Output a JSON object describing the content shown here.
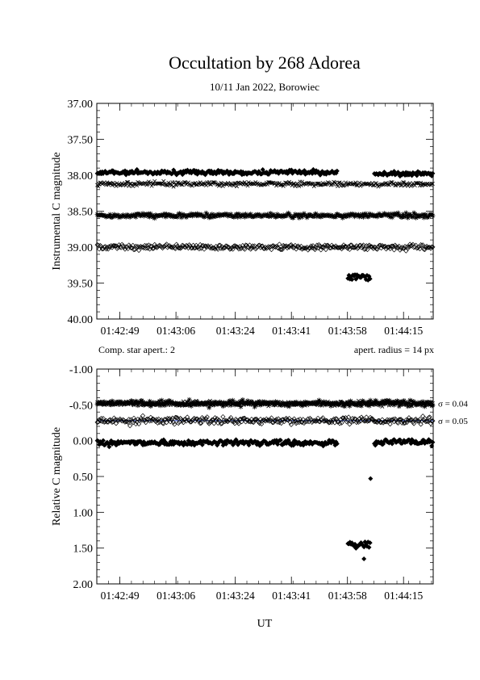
{
  "figure": {
    "title": "Occultation by 268 Adorea",
    "subtitle": "10/11 Jan 2022, Borowiec",
    "xlabel": "UT",
    "note_left": "Comp. star apert.: 2",
    "note_right": "apert. radius = 14 px"
  },
  "chart_data": [
    {
      "type": "scatter",
      "title": "Occultation by 268 Adorea",
      "ylabel": "Instrumental C magnitude",
      "xlabel": "UT",
      "xlim": [
        "01:42:42",
        "01:44:24"
      ],
      "ylim": [
        40.0,
        37.0
      ],
      "y_inverted": true,
      "xticks": [
        "01:42:49",
        "01:43:06",
        "01:43:24",
        "01:43:41",
        "01:43:58",
        "01:44:15"
      ],
      "yticks": [
        "37.00",
        "37.50",
        "38.00",
        "38.50",
        "39.00",
        "39.50",
        "40.00"
      ],
      "series": [
        {
          "marker": "filled-diamond",
          "segments": [
            {
              "t0": "01:42:42",
              "t1": "01:43:55",
              "mean": 37.96,
              "scatter": 0.03
            },
            {
              "t0": "01:44:06",
              "t1": "01:44:24",
              "mean": 37.98,
              "scatter": 0.03
            }
          ]
        },
        {
          "marker": "filled-diamond",
          "segments": [
            {
              "t0": "01:43:58",
              "t1": "01:44:05",
              "mean": 39.42,
              "scatter": 0.04
            }
          ]
        },
        {
          "marker": "cross",
          "segments": [
            {
              "t0": "01:42:42",
              "t1": "01:44:24",
              "mean": 38.12,
              "scatter": 0.03
            }
          ]
        },
        {
          "marker": "asterisk",
          "segments": [
            {
              "t0": "01:42:42",
              "t1": "01:44:24",
              "mean": 38.56,
              "scatter": 0.03
            }
          ]
        },
        {
          "marker": "open-diamond",
          "segments": [
            {
              "t0": "01:42:42",
              "t1": "01:44:24",
              "mean": 39.0,
              "scatter": 0.04
            }
          ]
        }
      ]
    },
    {
      "type": "scatter",
      "ylabel": "Relative C magnitude",
      "xlabel": "UT",
      "xlim": [
        "01:42:42",
        "01:44:24"
      ],
      "ylim": [
        2.0,
        -1.0
      ],
      "y_inverted": true,
      "xticks": [
        "01:42:49",
        "01:43:06",
        "01:43:24",
        "01:43:41",
        "01:43:58",
        "01:44:15"
      ],
      "yticks": [
        "-1.00",
        "-0.50",
        "0.00",
        "0.50",
        "1.00",
        "1.50",
        "2.00"
      ],
      "series": [
        {
          "marker": "asterisk",
          "mean_line": -0.52,
          "mean_line_color": "#c0392b",
          "sigma_label": "σ = 0.04",
          "segments": [
            {
              "t0": "01:42:42",
              "t1": "01:44:24",
              "mean": -0.52,
              "scatter": 0.04
            }
          ]
        },
        {
          "marker": "cross",
          "mean_line": -0.52,
          "segments": [
            {
              "t0": "01:42:42",
              "t1": "01:44:24",
              "mean": -0.52,
              "scatter": 0.03
            }
          ]
        },
        {
          "marker": "open-diamond",
          "mean_line": -0.28,
          "mean_line_color": "#1f3fbf",
          "sigma_label": "σ = 0.05",
          "segments": [
            {
              "t0": "01:42:42",
              "t1": "01:44:24",
              "mean": -0.28,
              "scatter": 0.05
            }
          ]
        },
        {
          "marker": "filled-diamond",
          "segments": [
            {
              "t0": "01:42:42",
              "t1": "01:43:55",
              "mean": 0.03,
              "scatter": 0.04
            },
            {
              "t0": "01:43:58",
              "t1": "01:44:05",
              "mean": 1.45,
              "scatter": 0.05
            },
            {
              "t0": "01:44:06",
              "t1": "01:44:24",
              "mean": 0.02,
              "scatter": 0.04
            }
          ],
          "extra_points": [
            {
              "t": "01:44:05",
              "y": 0.53
            },
            {
              "t": "01:44:03",
              "y": 1.65
            }
          ]
        }
      ]
    }
  ]
}
